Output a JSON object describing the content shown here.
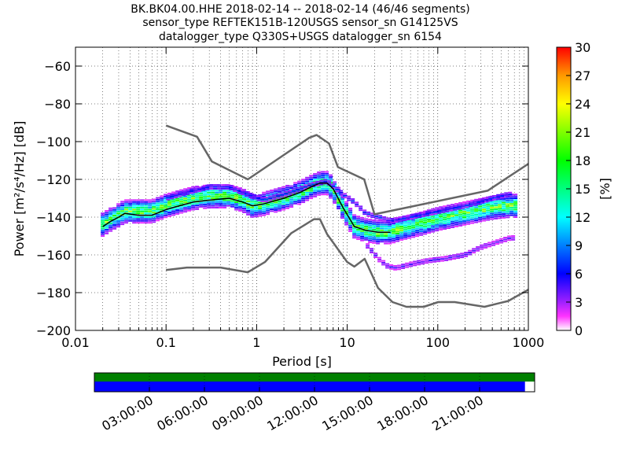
{
  "header": {
    "line1": "BK.BK04.00.HHE   2018-02-14 -- 2018-02-14  (46/46 segments)",
    "line2": "sensor_type REFTEK151B-120USGS sensor_sn G14125VS",
    "line3": "datalogger_type Q330S+USGS datalogger_sn 6154"
  },
  "chart_data": [
    {
      "type": "heatmap",
      "title": "BK.BK04.00.HHE   2018-02-14 -- 2018-02-14  (46/46 segments)",
      "xlabel": "Period [s]",
      "ylabel": "Power [m²/s⁴/Hz] [dB]",
      "x_scale": "log",
      "xlim": [
        0.01,
        1000
      ],
      "ylim": [
        -200,
        -50
      ],
      "x_ticks": [
        "0.01",
        "0.1",
        "1",
        "10",
        "100",
        "1000"
      ],
      "y_ticks": [
        "−60",
        "−80",
        "−100",
        "−120",
        "−140",
        "−160",
        "−180",
        "−200"
      ],
      "grid": true,
      "colorbar": {
        "label": "[%]",
        "ticks": [
          "0",
          "3",
          "6",
          "9",
          "12",
          "15",
          "18",
          "21",
          "24",
          "27",
          "30"
        ],
        "range": [
          0,
          30
        ],
        "colormap": "pqlx"
      },
      "noise_model_high": {
        "name": "NHNM",
        "period": [
          0.1,
          0.22,
          0.32,
          0.8,
          3.8,
          4.6,
          6.3,
          7.9,
          15.4,
          20,
          354.8,
          10000
        ],
        "power": [
          -91.5,
          -97.4,
          -110.5,
          -120,
          -98,
          -96.5,
          -101,
          -113.5,
          -120,
          -138.5,
          -126,
          -80.1
        ]
      },
      "noise_model_low": {
        "name": "NLNM",
        "period": [
          0.1,
          0.17,
          0.4,
          0.8,
          1.24,
          2.4,
          4.3,
          5,
          6,
          10,
          12,
          15.6,
          21.9,
          31.6,
          45,
          70,
          101,
          154,
          328,
          600,
          10000
        ],
        "power": [
          -168,
          -166.7,
          -166.7,
          -169.2,
          -163.7,
          -148.6,
          -141.1,
          -141.1,
          -149,
          -163.8,
          -166.2,
          -162.1,
          -177.5,
          -185,
          -187.5,
          -187.5,
          -185,
          -185,
          -187.5,
          -184.4,
          -151.5
        ]
      },
      "mode_curve": {
        "period": [
          0.02,
          0.025,
          0.03,
          0.035,
          0.05,
          0.07,
          0.1,
          0.14,
          0.2,
          0.3,
          0.5,
          0.7,
          0.9,
          1.2,
          2,
          3,
          4,
          5,
          6,
          7,
          9,
          12,
          16,
          22,
          30
        ],
        "power": [
          -145,
          -142,
          -140,
          -138,
          -139,
          -139,
          -136,
          -134,
          -132,
          -131,
          -130,
          -132,
          -134,
          -133,
          -130,
          -127,
          -124,
          -122,
          -122,
          -125,
          -135,
          -145,
          -147,
          -148,
          -148
        ]
      },
      "density_main": {
        "period": [
          0.02,
          0.025,
          0.03,
          0.035,
          0.05,
          0.07,
          0.1,
          0.14,
          0.2,
          0.3,
          0.5,
          0.7,
          0.9,
          1.2,
          2,
          3,
          4,
          5,
          6,
          7,
          9,
          12,
          16,
          22,
          30,
          40,
          60,
          100,
          160,
          250,
          400,
          630
        ],
        "power": [
          -144,
          -141,
          -139,
          -137,
          -137,
          -137,
          -134,
          -132,
          -130,
          -129,
          -129,
          -131,
          -134,
          -133,
          -130,
          -127,
          -124,
          -122,
          -122,
          -125,
          -135,
          -145,
          -147,
          -148,
          -148,
          -146,
          -144,
          -141,
          -139,
          -137,
          -135,
          -134
        ]
      },
      "density_upper": {
        "period": [
          0.1,
          0.2,
          0.3,
          0.5,
          0.8,
          1.2,
          2,
          4,
          6,
          9,
          12,
          16,
          22,
          30,
          50,
          100,
          200,
          400,
          600
        ],
        "power": [
          -130,
          -126,
          -124,
          -124,
          -128,
          -131,
          -128,
          -123,
          -121,
          -128,
          -132,
          -138,
          -140,
          -142,
          -140,
          -137,
          -134,
          -130,
          -128
        ]
      },
      "density_lower": {
        "period": [
          16,
          22,
          28,
          35,
          50,
          80,
          120,
          200,
          300,
          630
        ],
        "power": [
          -154,
          -162,
          -166,
          -167,
          -165,
          -163,
          -162,
          -160,
          -156,
          -151
        ]
      }
    },
    {
      "type": "bar",
      "title": "",
      "time_ticks": [
        "03:00:00",
        "06:00:00",
        "09:00:00",
        "12:00:00",
        "15:00:00",
        "18:00:00",
        "21:00:00"
      ],
      "coverage_fraction": [
        0,
        1
      ],
      "data_fraction": [
        0,
        0.978
      ],
      "colors": {
        "coverage": "#008000",
        "data": "#0000ff"
      }
    }
  ]
}
